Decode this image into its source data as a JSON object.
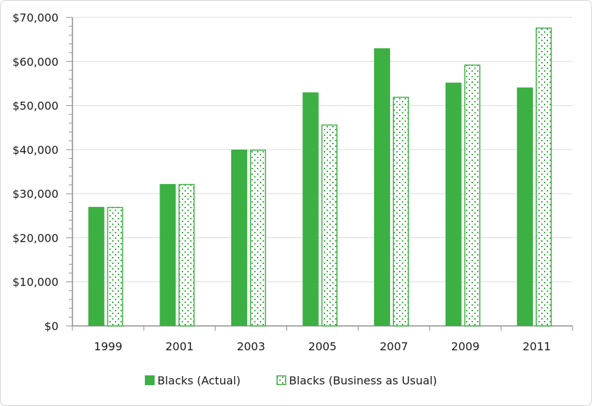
{
  "chart_data": {
    "type": "bar",
    "categories": [
      "1999",
      "2001",
      "2003",
      "2005",
      "2007",
      "2009",
      "2011"
    ],
    "series": [
      {
        "name": "Blacks (Actual)",
        "values": [
          27000,
          32200,
          40000,
          53000,
          63000,
          55200,
          54100
        ],
        "style": "solid",
        "color": "#3cb043"
      },
      {
        "name": "Blacks (Business as Usual)",
        "values": [
          27000,
          32200,
          40000,
          45700,
          52000,
          59300,
          67700
        ],
        "style": "pattern",
        "color": "#3cb043"
      }
    ],
    "ylim": [
      0,
      70000
    ],
    "yticks": [
      0,
      10000,
      20000,
      30000,
      40000,
      50000,
      60000,
      70000
    ],
    "ytick_labels": [
      "$0",
      "$10,000",
      "$20,000",
      "$30,000",
      "$40,000",
      "$50,000",
      "$60,000",
      "$70,000"
    ],
    "xlabel": "",
    "ylabel": "",
    "title": "",
    "grid": true,
    "legend_position": "bottom"
  }
}
